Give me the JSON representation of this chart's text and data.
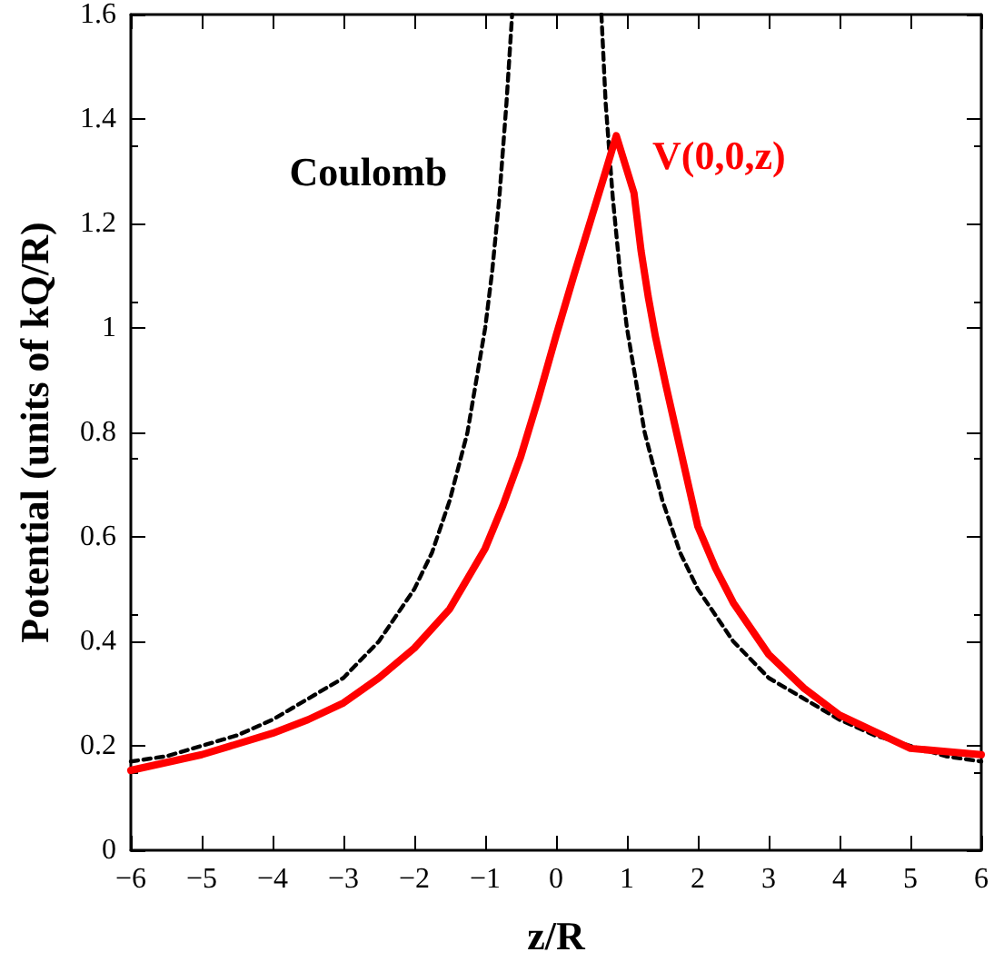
{
  "chart_data": {
    "type": "line",
    "xlabel": "z/R",
    "ylabel": "Potential (units of kQ/R)",
    "xlim": [
      -6,
      6
    ],
    "xticks": [
      {
        "value": -6,
        "label": "−6"
      },
      {
        "value": -5,
        "label": "−5"
      },
      {
        "value": -4,
        "label": "−4"
      },
      {
        "value": -3,
        "label": "−3"
      },
      {
        "value": -2,
        "label": "−2"
      },
      {
        "value": -1,
        "label": "−1"
      },
      0,
      1,
      2,
      3,
      4,
      5,
      6
    ],
    "ylim": [
      0,
      1.6
    ],
    "yticks": [
      0,
      0.2,
      0.4,
      0.6,
      0.8,
      1,
      1.2,
      1.4,
      1.6
    ],
    "grid": false,
    "legend": false,
    "marker": "none",
    "series": [
      {
        "name": "Coulomb",
        "color": "#000000",
        "line_style": "dashed",
        "x": [
          -6,
          -5.5,
          -5,
          -4.5,
          -4,
          -3.5,
          -3,
          -2.5,
          -2,
          -1.75,
          -1.5,
          -1.25,
          -1,
          -0.9,
          -0.8,
          -0.7,
          -0.62,
          0,
          0.64,
          0.7,
          0.8,
          0.9,
          1,
          1.25,
          1.5,
          1.75,
          2,
          2.5,
          3,
          3.5,
          4,
          4.5,
          5,
          5.5,
          6
        ],
        "values": [
          0.17,
          0.18,
          0.2,
          0.22,
          0.25,
          0.29,
          0.33,
          0.4,
          0.5,
          0.57,
          0.67,
          0.8,
          1.0,
          1.11,
          1.25,
          1.43,
          1.6,
          null,
          1.6,
          1.43,
          1.25,
          1.11,
          1.0,
          0.8,
          0.67,
          0.57,
          0.5,
          0.4,
          0.33,
          0.29,
          0.25,
          0.22,
          0.2,
          0.18,
          0.17
        ]
      },
      {
        "name": "V(0,0,z)",
        "color": "#ff0000",
        "line_style": "solid",
        "x": [
          -6,
          -5,
          -4,
          -3.5,
          -3,
          -2.5,
          -2,
          -1.5,
          -1,
          -0.75,
          -0.5,
          -0.25,
          0,
          0.25,
          0.5,
          0.7,
          0.85,
          1.1,
          1.2,
          1.3,
          1.4,
          1.55,
          1.7,
          2,
          2.25,
          2.5,
          3,
          3.5,
          4,
          5,
          6
        ],
        "values": [
          0.153,
          0.183,
          0.224,
          0.25,
          0.282,
          0.33,
          0.387,
          0.462,
          0.578,
          0.66,
          0.753,
          0.865,
          0.985,
          1.1,
          1.211,
          1.3,
          1.368,
          1.258,
          1.147,
          1.06,
          0.985,
          0.89,
          0.8,
          0.62,
          0.54,
          0.474,
          0.375,
          0.31,
          0.259,
          0.195,
          0.183
        ]
      }
    ]
  }
}
